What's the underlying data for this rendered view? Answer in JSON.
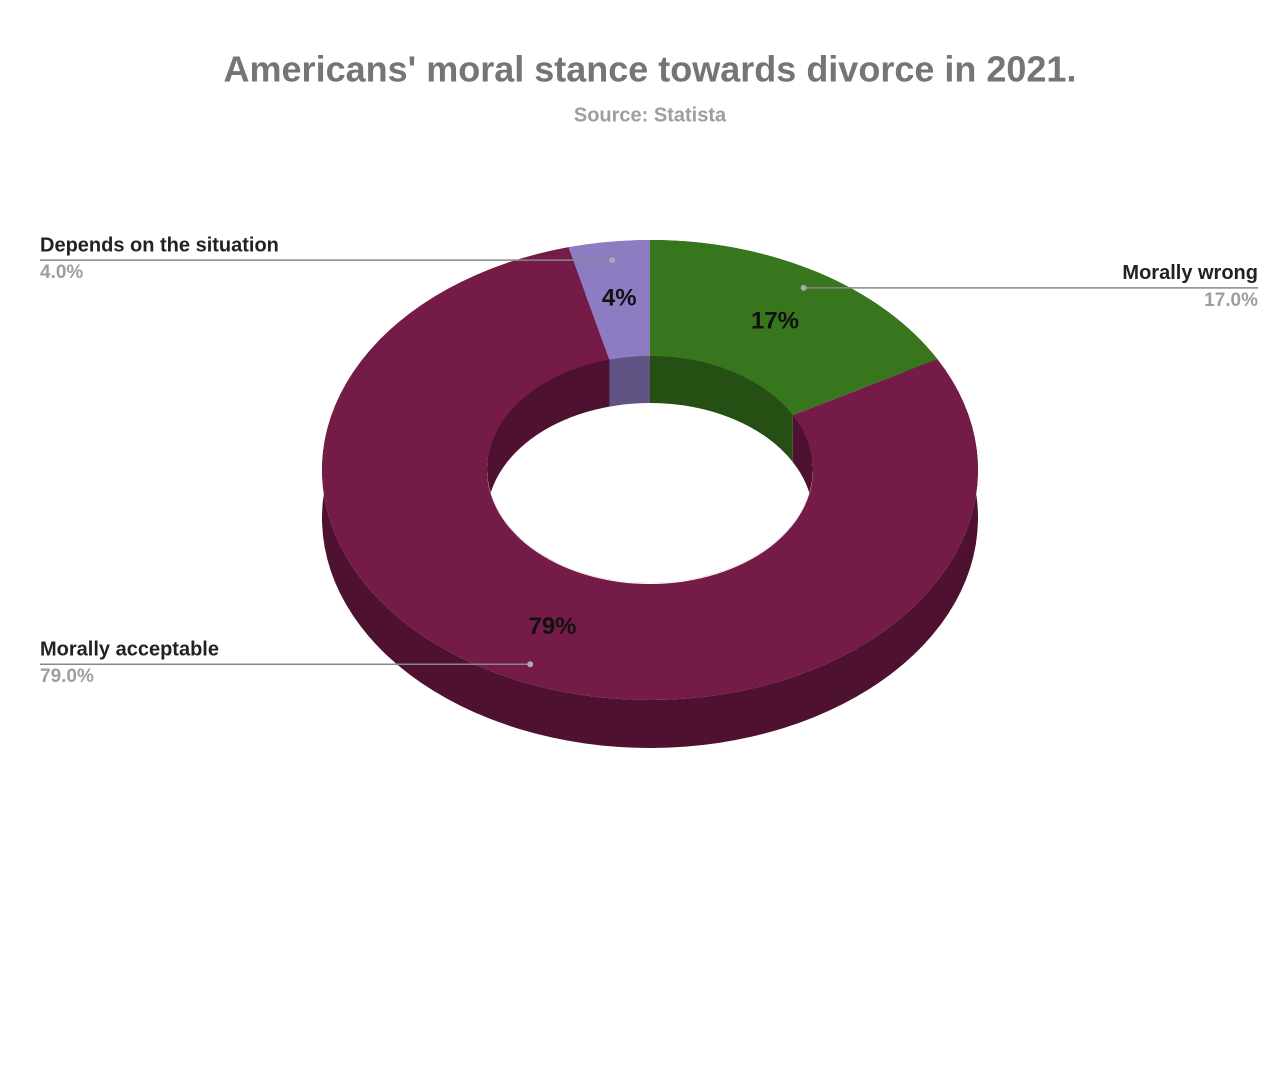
{
  "chart_data": {
    "type": "donut",
    "title": "Americans' moral stance towards divorce in 2021.",
    "subtitle": "Source: Statista",
    "categories": [
      "Morally wrong",
      "Morally acceptable",
      "Depends on the situation"
    ],
    "values": [
      17,
      79,
      4
    ],
    "value_labels": [
      "17%",
      "79%",
      "4%"
    ],
    "outside_value_labels": [
      "17.0%",
      "79.0%",
      "4.0%"
    ],
    "colors": [
      "#38761d",
      "#741b47",
      "#8e7cc3"
    ]
  }
}
